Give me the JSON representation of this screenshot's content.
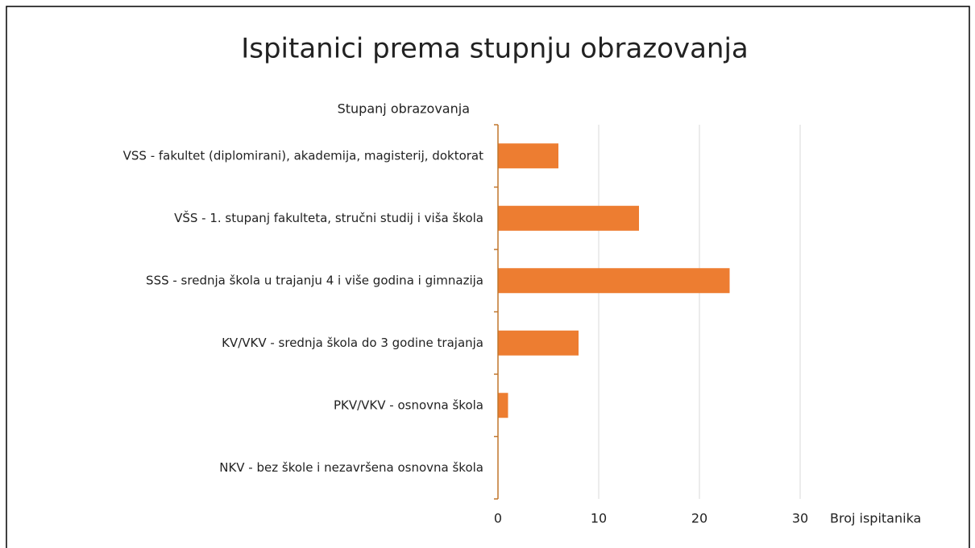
{
  "chart_data": {
    "type": "bar",
    "orientation": "horizontal",
    "title": "Ispitanici prema stupnju obrazovanja",
    "y_label": "Stupanj obrazovanja",
    "x_label": "Broj ispitanika",
    "categories": [
      "VSS - fakultet (diplomirani), akademija, magisterij, doktorat",
      "VŠS - 1. stupanj fakulteta, stručni studij i viša škola",
      "SSS - srednja škola u trajanju 4 i više godina i gimnazija",
      "KV/VKV - srednja škola do 3 godine trajanja",
      "PKV/VKV - osnovna škola",
      "NKV - bez škole i nezavršena osnovna škola"
    ],
    "values": [
      6,
      14,
      23,
      8,
      1,
      0
    ],
    "color": "#ed7d31",
    "xlim": [
      0,
      30
    ],
    "xticks": [
      0,
      10,
      20,
      30
    ],
    "grid": true
  }
}
